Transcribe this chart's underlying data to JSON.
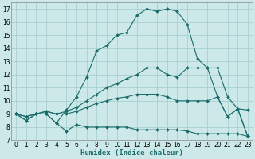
{
  "xlabel": "Humidex (Indice chaleur)",
  "bg_color": "#cce8e8",
  "grid_color": "#a8d0d0",
  "line_color": "#1a6b6b",
  "xlim": [
    -0.5,
    23.5
  ],
  "ylim": [
    7,
    17.5
  ],
  "xticks": [
    0,
    1,
    2,
    3,
    4,
    5,
    6,
    7,
    8,
    9,
    10,
    11,
    12,
    13,
    14,
    15,
    16,
    17,
    18,
    19,
    20,
    21,
    22,
    23
  ],
  "yticks": [
    7,
    8,
    9,
    10,
    11,
    12,
    13,
    14,
    15,
    16,
    17
  ],
  "lines": [
    [
      9,
      8.5,
      9,
      9,
      8.3,
      7.7,
      8.2,
      8.0,
      8.0,
      8.0,
      8.0,
      8.0,
      7.8,
      7.8,
      7.8,
      7.8,
      7.8,
      7.7,
      7.5,
      7.5,
      7.5,
      7.5,
      7.5,
      7.3
    ],
    [
      9,
      8.8,
      9,
      9.2,
      9.0,
      9.0,
      9.2,
      9.5,
      9.8,
      10.0,
      10.2,
      10.3,
      10.5,
      10.5,
      10.5,
      10.3,
      10.0,
      10.0,
      10.0,
      10.0,
      10.3,
      8.8,
      9.4,
      9.3
    ],
    [
      9,
      8.8,
      9,
      9.2,
      9.0,
      9.2,
      9.5,
      10.0,
      10.5,
      11.0,
      11.3,
      11.7,
      12.0,
      12.5,
      12.5,
      12.0,
      11.8,
      12.5,
      12.5,
      12.5,
      12.5,
      10.3,
      9.4,
      7.3
    ],
    [
      9,
      8.5,
      9,
      9,
      8.3,
      9.3,
      10.3,
      11.8,
      13.8,
      14.2,
      15.0,
      15.2,
      16.5,
      17.0,
      16.8,
      17.0,
      16.8,
      15.8,
      13.2,
      12.5,
      10.3,
      8.8,
      9.4,
      7.3
    ]
  ]
}
